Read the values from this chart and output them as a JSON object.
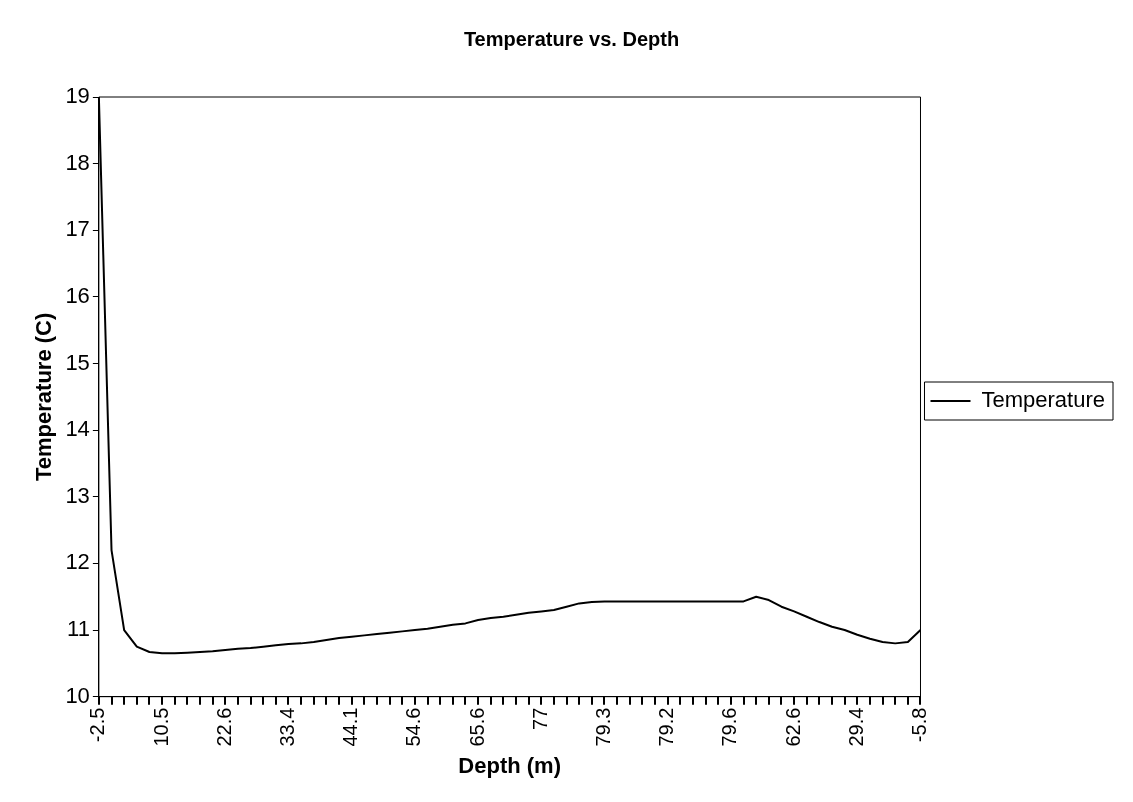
{
  "chart_data": {
    "type": "line",
    "title": "Temperature vs. Depth",
    "xlabel": "Depth (m)",
    "ylabel": "Temperature (C)",
    "categories": [
      "-2.5",
      null,
      null,
      null,
      null,
      "10.5",
      null,
      null,
      null,
      null,
      "22.6",
      null,
      null,
      null,
      null,
      "33.4",
      null,
      null,
      null,
      null,
      "44.1",
      null,
      null,
      null,
      null,
      "54.6",
      null,
      null,
      null,
      null,
      "65.6",
      null,
      null,
      null,
      null,
      "77",
      null,
      null,
      null,
      null,
      "79.3",
      null,
      null,
      null,
      null,
      "79.2",
      null,
      null,
      null,
      null,
      "79.6",
      null,
      null,
      null,
      null,
      "62.6",
      null,
      null,
      null,
      null,
      "29.4",
      null,
      null,
      null,
      null,
      "-5.8"
    ],
    "series": [
      {
        "name": "Temperature",
        "color": "#000000",
        "values": [
          19,
          12.2,
          11.0,
          10.75,
          10.67,
          10.65,
          10.65,
          10.66,
          10.67,
          10.68,
          10.7,
          10.72,
          10.73,
          10.75,
          10.77,
          10.79,
          10.8,
          10.82,
          10.85,
          10.88,
          10.9,
          10.92,
          10.94,
          10.96,
          10.98,
          11.0,
          11.02,
          11.05,
          11.08,
          11.1,
          11.15,
          11.18,
          11.2,
          11.23,
          11.26,
          11.28,
          11.3,
          11.35,
          11.4,
          11.42,
          11.43,
          11.43,
          11.43,
          11.43,
          11.43,
          11.43,
          11.43,
          11.43,
          11.43,
          11.43,
          11.43,
          11.43,
          11.5,
          11.45,
          11.35,
          11.28,
          11.2,
          11.12,
          11.05,
          11.0,
          10.93,
          10.87,
          10.82,
          10.8,
          10.82,
          11.0
        ]
      }
    ],
    "ylim": [
      10,
      19
    ],
    "yticks": [
      10,
      11,
      12,
      13,
      14,
      15,
      16,
      17,
      18,
      19
    ],
    "legend": "right",
    "marker": "none",
    "line_style": "solid"
  }
}
